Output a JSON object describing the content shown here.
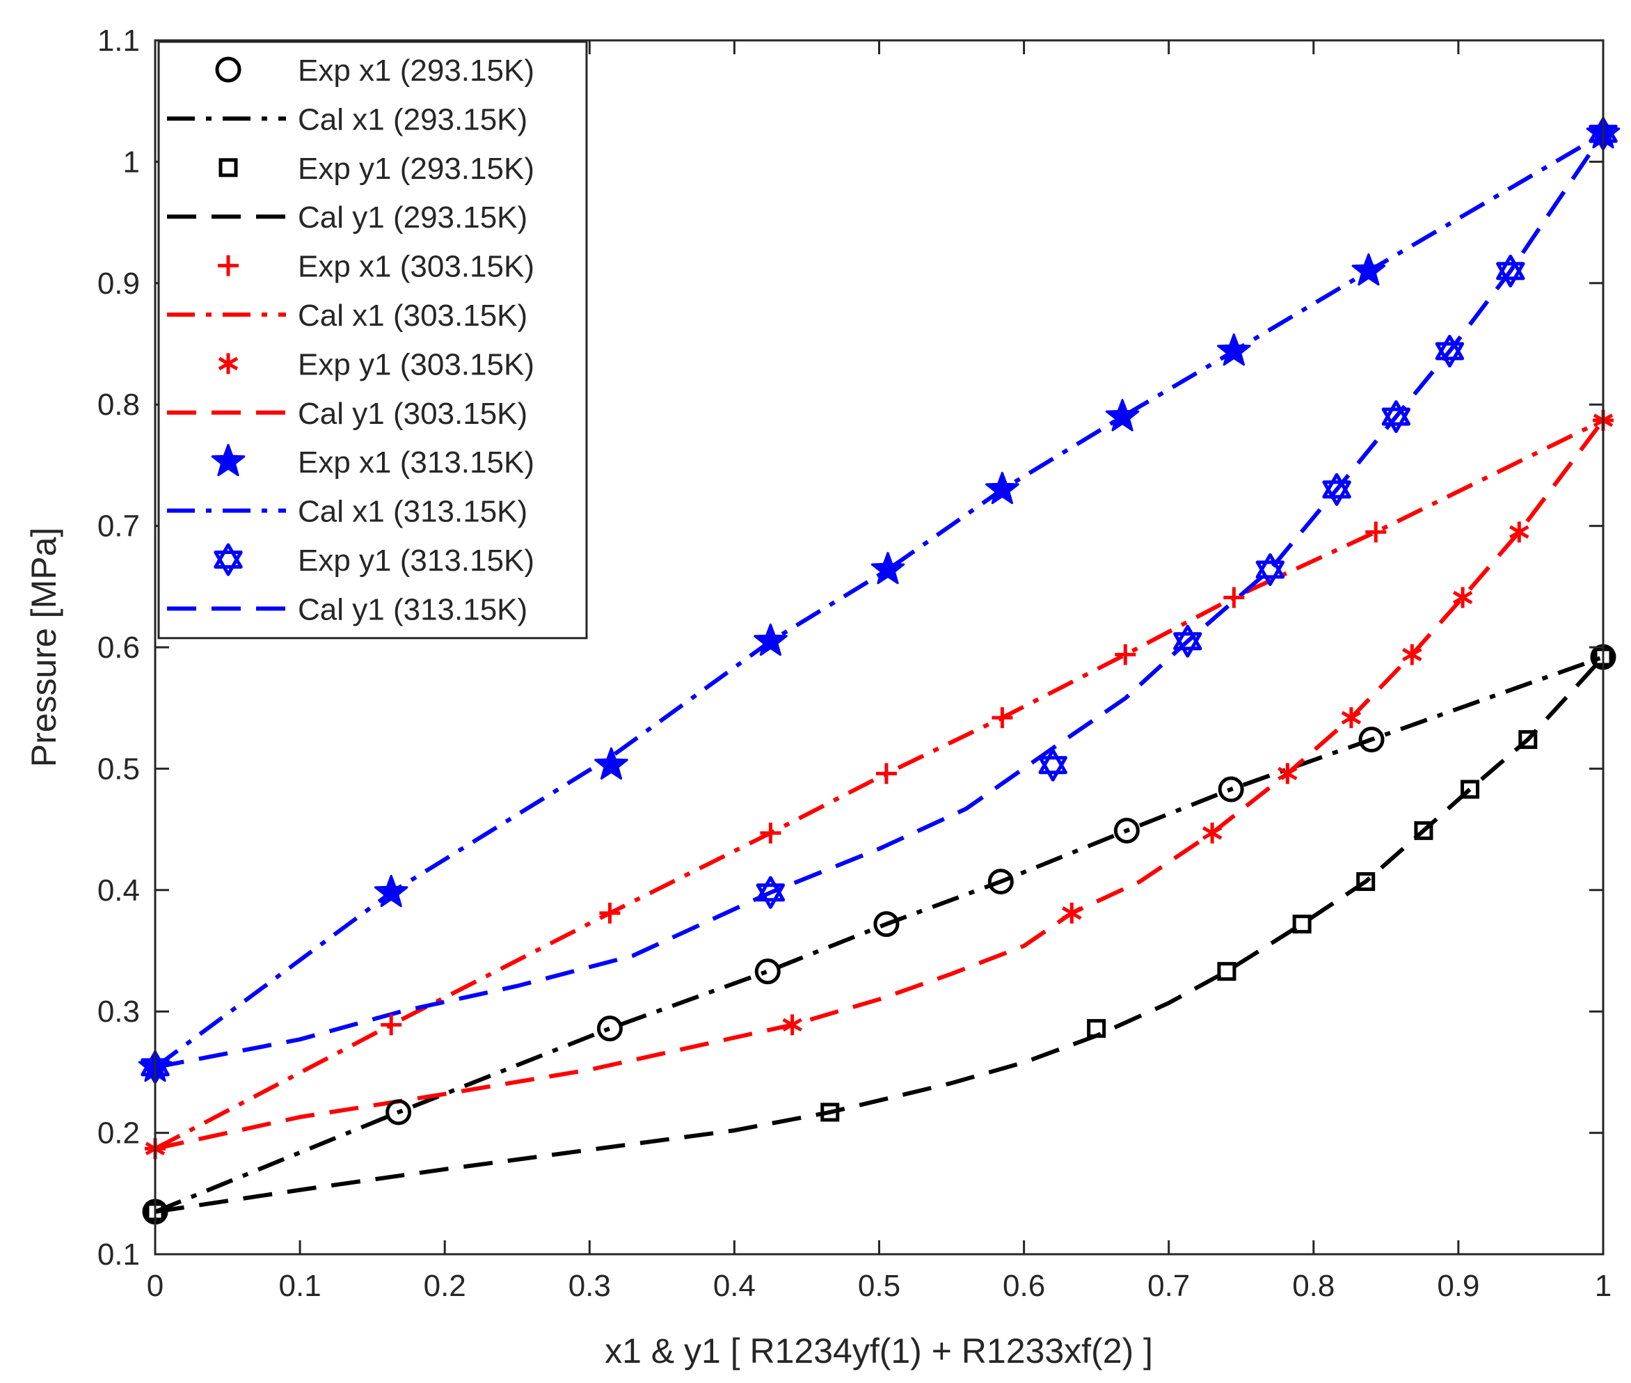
{
  "chart_data": {
    "type": "line",
    "title": "",
    "xlabel": "x1 & y1 [ R1234yf(1) + R1233xf(2) ]",
    "ylabel": "Pressure [MPa]",
    "xlim": [
      0,
      1
    ],
    "ylim": [
      0.1,
      1.1
    ],
    "xticks": [
      0,
      0.1,
      0.2,
      0.3,
      0.4,
      0.5,
      0.6,
      0.7,
      0.8,
      0.9,
      1
    ],
    "xtick_labels": [
      "0",
      "0.1",
      "0.2",
      "0.3",
      "0.4",
      "0.5",
      "0.6",
      "0.7",
      "0.8",
      "0.9",
      "1"
    ],
    "yticks": [
      0.1,
      0.2,
      0.3,
      0.4,
      0.5,
      0.6,
      0.7,
      0.8,
      0.9,
      1,
      1.1
    ],
    "ytick_labels": [
      "0.1",
      "0.2",
      "0.3",
      "0.4",
      "0.5",
      "0.6",
      "0.7",
      "0.8",
      "0.9",
      "1",
      "1.1"
    ],
    "grid": false,
    "legend_position": "top-left",
    "series": [
      {
        "name": "Exp x1 (293.15K)",
        "kind": "marker",
        "marker": "circle",
        "color": "#000000",
        "x": [
          0,
          0.168,
          0.314,
          0.423,
          0.505,
          0.584,
          0.671,
          0.743,
          0.84,
          1.0
        ],
        "y": [
          0.135,
          0.217,
          0.286,
          0.333,
          0.372,
          0.407,
          0.449,
          0.483,
          0.524,
          0.592
        ]
      },
      {
        "name": "Cal x1 (293.15K)",
        "kind": "line",
        "dash": "dashdot",
        "color": "#000000",
        "x": [
          0,
          0.168,
          0.314,
          0.423,
          0.505,
          0.584,
          0.671,
          0.743,
          0.84,
          1.0
        ],
        "y": [
          0.135,
          0.217,
          0.286,
          0.333,
          0.372,
          0.407,
          0.449,
          0.483,
          0.524,
          0.592
        ]
      },
      {
        "name": "Exp y1 (293.15K)",
        "kind": "marker",
        "marker": "square",
        "color": "#000000",
        "x": [
          0,
          0.466,
          0.65,
          0.74,
          0.792,
          0.836,
          0.876,
          0.908,
          0.948,
          1.0
        ],
        "y": [
          0.135,
          0.217,
          0.286,
          0.333,
          0.372,
          0.407,
          0.449,
          0.483,
          0.524,
          0.592
        ]
      },
      {
        "name": "Cal y1 (293.15K)",
        "kind": "line",
        "dash": "dashed",
        "color": "#000000",
        "x": [
          0,
          0.1,
          0.2,
          0.3,
          0.4,
          0.466,
          0.55,
          0.6,
          0.65,
          0.7,
          0.74,
          0.792,
          0.836,
          0.876,
          0.908,
          0.948,
          1.0
        ],
        "y": [
          0.135,
          0.153,
          0.17,
          0.186,
          0.202,
          0.217,
          0.241,
          0.258,
          0.28,
          0.307,
          0.333,
          0.372,
          0.407,
          0.449,
          0.483,
          0.524,
          0.592
        ]
      },
      {
        "name": "Exp x1 (303.15K)",
        "kind": "marker",
        "marker": "plus",
        "color": "#ff0000",
        "x": [
          0,
          0.163,
          0.314,
          0.425,
          0.505,
          0.585,
          0.67,
          0.745,
          0.843,
          1.0
        ],
        "y": [
          0.187,
          0.289,
          0.381,
          0.447,
          0.496,
          0.542,
          0.594,
          0.641,
          0.695,
          0.787
        ]
      },
      {
        "name": "Cal x1 (303.15K)",
        "kind": "line",
        "dash": "dashdot",
        "color": "#ff0000",
        "x": [
          0,
          0.163,
          0.314,
          0.425,
          0.505,
          0.585,
          0.67,
          0.745,
          0.843,
          1.0
        ],
        "y": [
          0.187,
          0.289,
          0.381,
          0.447,
          0.496,
          0.542,
          0.594,
          0.641,
          0.695,
          0.787
        ]
      },
      {
        "name": "Exp y1 (303.15K)",
        "kind": "marker",
        "marker": "asterisk",
        "color": "#ff0000",
        "x": [
          0,
          0.44,
          0.633,
          0.73,
          0.782,
          0.826,
          0.868,
          0.903,
          0.942,
          1.0
        ],
        "y": [
          0.187,
          0.289,
          0.381,
          0.447,
          0.496,
          0.542,
          0.594,
          0.641,
          0.695,
          0.787
        ]
      },
      {
        "name": "Cal y1 (303.15K)",
        "kind": "line",
        "dash": "dashed",
        "color": "#ff0000",
        "x": [
          0,
          0.1,
          0.2,
          0.3,
          0.44,
          0.5,
          0.55,
          0.6,
          0.633,
          0.68,
          0.73,
          0.782,
          0.826,
          0.868,
          0.903,
          0.942,
          1.0
        ],
        "y": [
          0.187,
          0.213,
          0.232,
          0.252,
          0.289,
          0.31,
          0.331,
          0.354,
          0.381,
          0.407,
          0.447,
          0.496,
          0.542,
          0.594,
          0.641,
          0.695,
          0.787
        ]
      },
      {
        "name": "Exp x1 (313.15K)",
        "kind": "marker",
        "marker": "star",
        "color": "#0000ff",
        "x": [
          0,
          0.163,
          0.315,
          0.425,
          0.506,
          0.585,
          0.668,
          0.745,
          0.838,
          1.0
        ],
        "y": [
          0.254,
          0.398,
          0.503,
          0.605,
          0.664,
          0.73,
          0.79,
          0.844,
          0.91,
          1.023
        ]
      },
      {
        "name": "Cal x1 (313.15K)",
        "kind": "line",
        "dash": "dashdot",
        "color": "#0000ff",
        "x": [
          0,
          0.163,
          0.315,
          0.425,
          0.506,
          0.585,
          0.668,
          0.745,
          0.838,
          1.0
        ],
        "y": [
          0.254,
          0.398,
          0.51,
          0.605,
          0.664,
          0.73,
          0.79,
          0.844,
          0.91,
          1.023
        ]
      },
      {
        "name": "Exp y1 (313.15K)",
        "kind": "marker",
        "marker": "hexagram",
        "color": "#0000ff",
        "x": [
          0,
          0.425,
          0.62,
          0.713,
          0.77,
          0.816,
          0.857,
          0.894,
          0.936,
          1.0
        ],
        "y": [
          0.254,
          0.398,
          0.503,
          0.605,
          0.664,
          0.73,
          0.79,
          0.844,
          0.91,
          1.023
        ]
      },
      {
        "name": "Cal y1 (313.15K)",
        "kind": "line",
        "dash": "dashed",
        "color": "#0000ff",
        "x": [
          0,
          0.1,
          0.17,
          0.25,
          0.33,
          0.425,
          0.5,
          0.56,
          0.62,
          0.67,
          0.713,
          0.77,
          0.816,
          0.857,
          0.894,
          0.936,
          1.0
        ],
        "y": [
          0.254,
          0.277,
          0.3,
          0.321,
          0.346,
          0.398,
          0.434,
          0.467,
          0.517,
          0.558,
          0.605,
          0.664,
          0.73,
          0.79,
          0.844,
          0.91,
          1.023
        ]
      }
    ]
  }
}
